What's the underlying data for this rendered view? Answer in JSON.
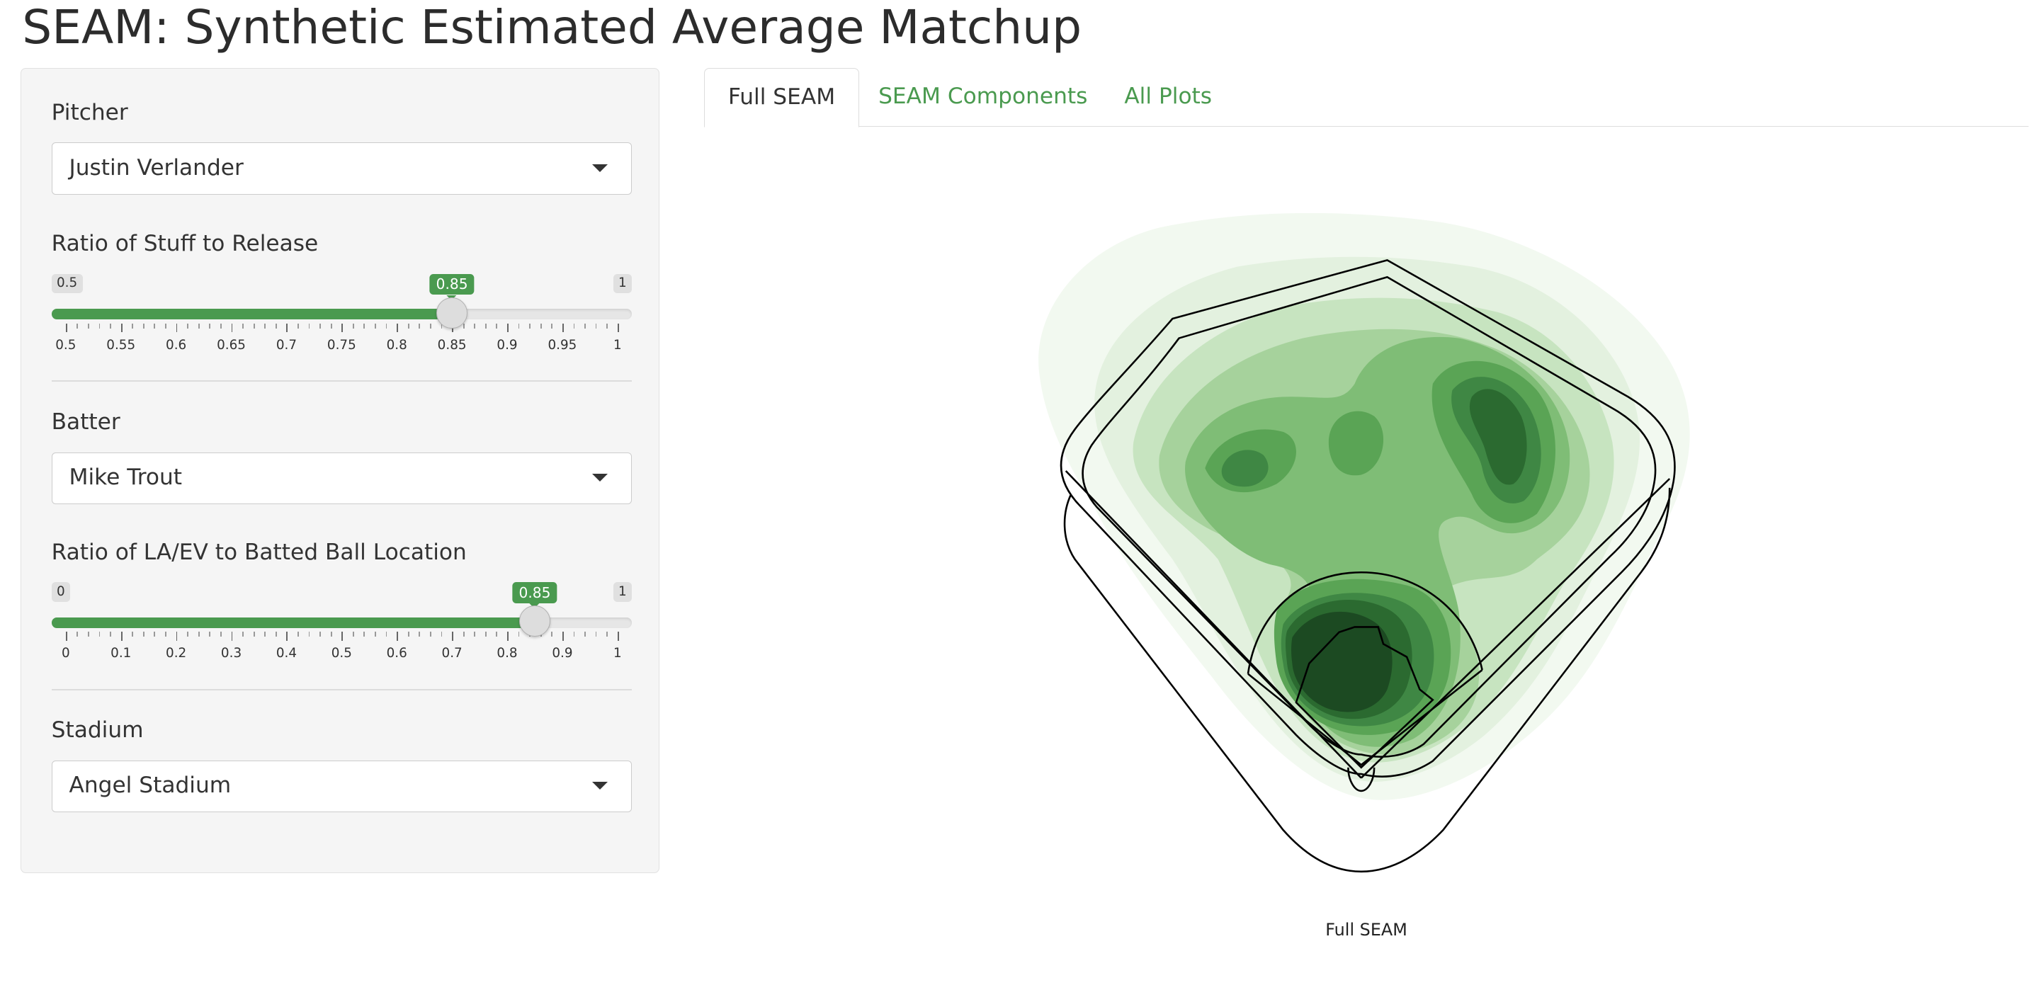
{
  "app": {
    "title": "SEAM: Synthetic Estimated Average Matchup"
  },
  "sidebar": {
    "pitcher": {
      "label": "Pitcher",
      "value": "Justin Verlander"
    },
    "stuff_slider": {
      "label": "Ratio of Stuff to Release",
      "min": 0.5,
      "max": 1,
      "value": 0.85,
      "min_label": "0.5",
      "max_label": "1",
      "value_label": "0.85",
      "ticks": [
        "0.5",
        "0.55",
        "0.6",
        "0.65",
        "0.7",
        "0.75",
        "0.8",
        "0.85",
        "0.9",
        "0.95",
        "1"
      ]
    },
    "batter": {
      "label": "Batter",
      "value": "Mike Trout"
    },
    "laev_slider": {
      "label": "Ratio of LA/EV to Batted Ball Location",
      "min": 0,
      "max": 1,
      "value": 0.85,
      "min_label": "0",
      "max_label": "1",
      "value_label": "0.85",
      "ticks": [
        "0",
        "0.1",
        "0.2",
        "0.3",
        "0.4",
        "0.5",
        "0.6",
        "0.7",
        "0.8",
        "0.9",
        "1"
      ]
    },
    "stadium": {
      "label": "Stadium",
      "value": "Angel Stadium"
    }
  },
  "tabs": [
    {
      "label": "Full SEAM",
      "active": true
    },
    {
      "label": "SEAM Components",
      "active": false
    },
    {
      "label": "All Plots",
      "active": false
    }
  ],
  "plot": {
    "caption": "Full SEAM",
    "colors": {
      "accent": "#4a9a4f",
      "density_dark": "#1e4a24",
      "density_light": "#eef7ec",
      "outline": "#000000"
    }
  }
}
